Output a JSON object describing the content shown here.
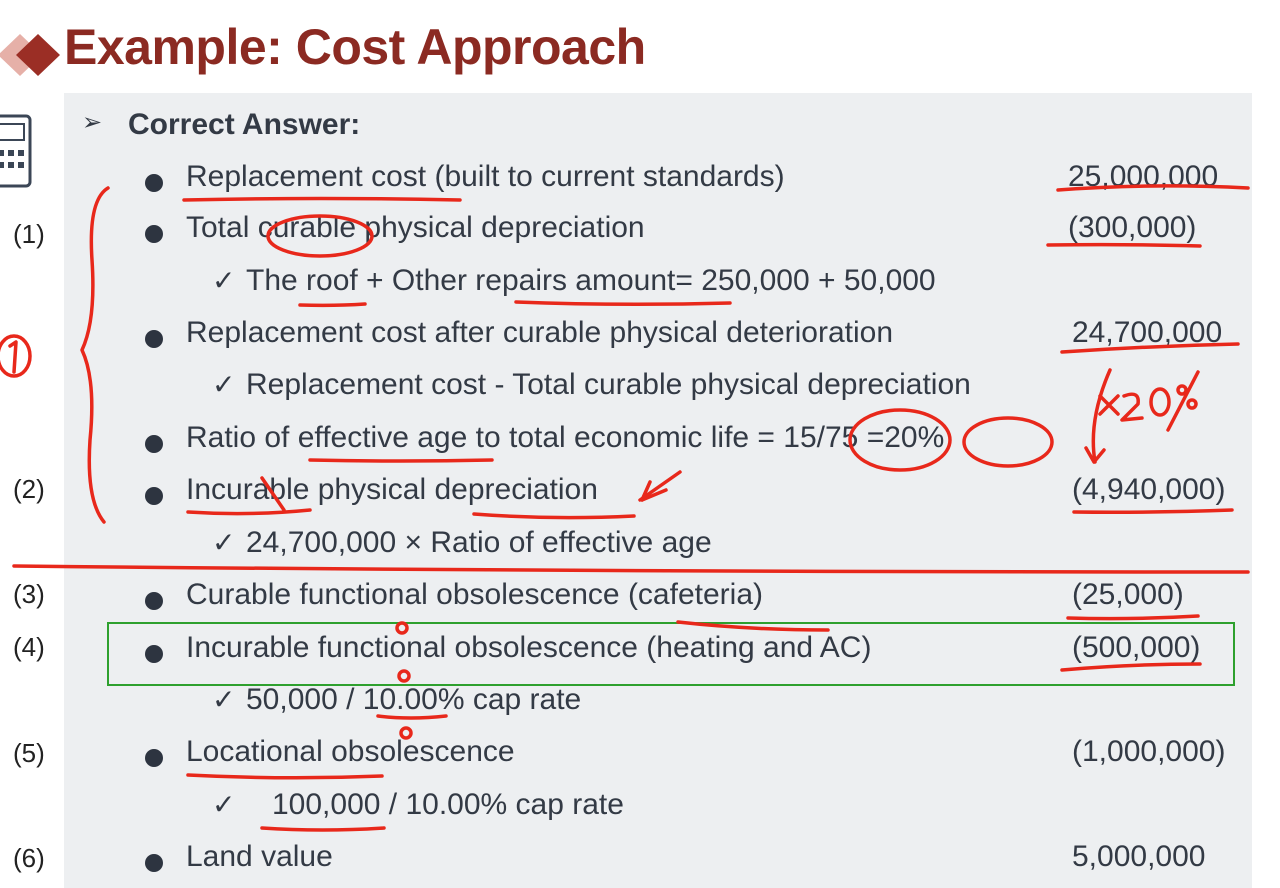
{
  "title": "Example: Cost Approach",
  "heading": "Correct Answer:",
  "line_numbers": [
    "(1)",
    "(2)",
    "(3)",
    "(4)",
    "(5)",
    "(6)"
  ],
  "rows": [
    {
      "text": "Replacement cost (built to current standards)",
      "value": "25,000,000"
    },
    {
      "text": "Total curable physical depreciation",
      "value": "(300,000)"
    },
    {
      "text": "The roof  + Other repairs amount= 250,000 + 50,000"
    },
    {
      "text": "Replacement cost after curable physical deterioration",
      "value": "24,700,000"
    },
    {
      "text": "Replacement cost - Total curable physical depreciation"
    },
    {
      "text": "Ratio of effective age to total economic life = 15/75 =20%"
    },
    {
      "text": "Incurable physical depreciation",
      "value": "(4,940,000)"
    },
    {
      "text": "24,700,000 × Ratio of effective age"
    },
    {
      "text": "Curable functional obsolescence (cafeteria)",
      "value": "(25,000)"
    },
    {
      "text": "Incurable functional obsolescence (heating and AC)",
      "value": "(500,000)"
    },
    {
      "text": "50,000 / 10.00% cap rate"
    },
    {
      "text": "Locational obsolescence",
      "value": "(1,000,000)"
    },
    {
      "text": "100,000 / 10.00% cap rate"
    },
    {
      "text": "Land value",
      "value": "5,000,000"
    }
  ],
  "handwritten_notes": {
    "circle_one": "1",
    "times_twenty": "×20%"
  },
  "colors": {
    "title": "#8b2a22",
    "panel": "#edeff1",
    "ink": "#e8281b",
    "highlight": "#2ea02e"
  }
}
